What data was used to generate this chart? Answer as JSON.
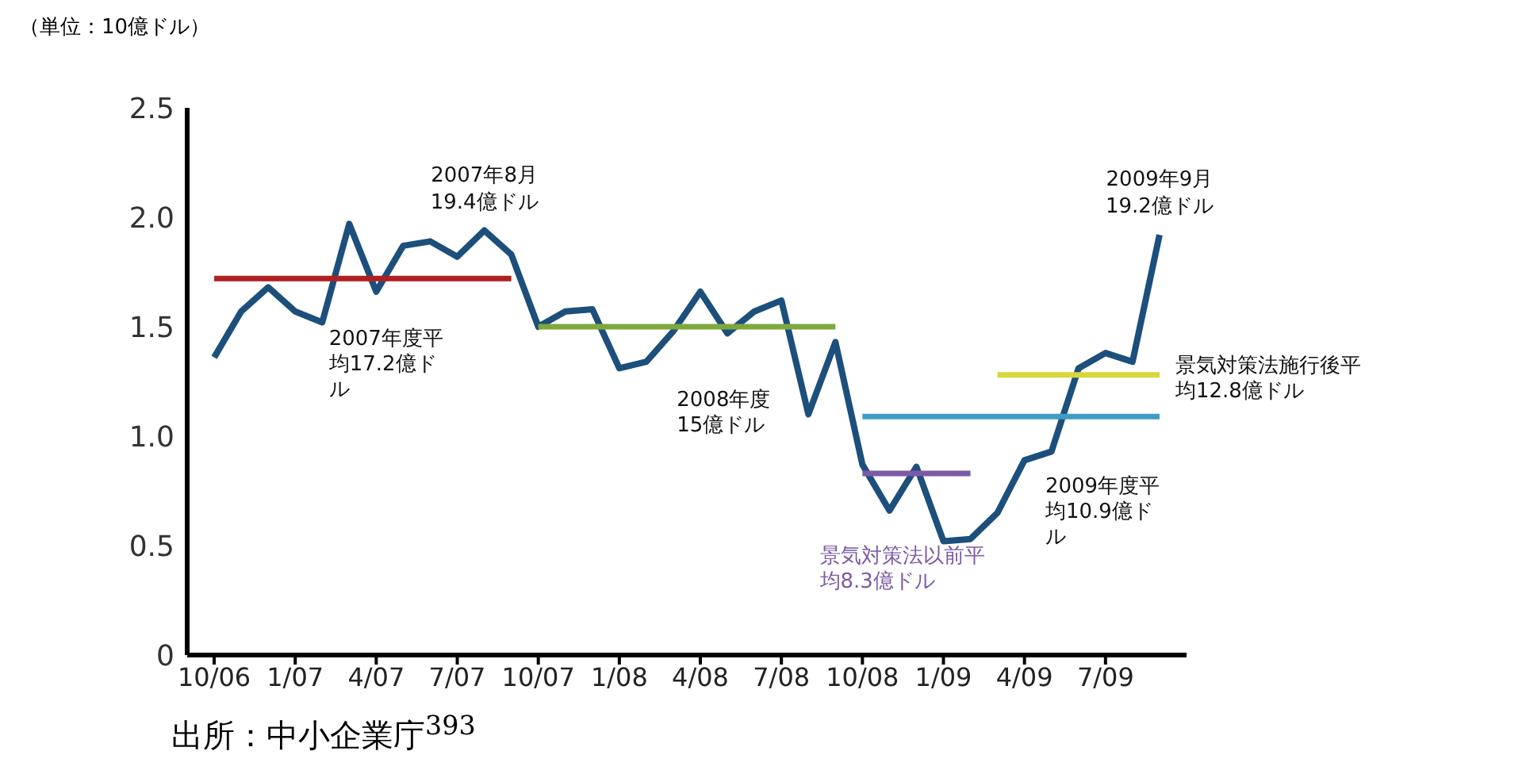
{
  "chart_data": {
    "type": "line",
    "ylabel": "（単位：10億ドル）",
    "x": [
      "2006-10",
      "2006-11",
      "2006-12",
      "2007-01",
      "2007-02",
      "2007-03",
      "2007-04",
      "2007-05",
      "2007-06",
      "2007-07",
      "2007-08",
      "2007-09",
      "2007-10",
      "2007-11",
      "2007-12",
      "2008-01",
      "2008-02",
      "2008-03",
      "2008-04",
      "2008-05",
      "2008-06",
      "2008-07",
      "2008-08",
      "2008-09",
      "2008-10",
      "2008-11",
      "2008-12",
      "2009-01",
      "2009-02",
      "2009-03",
      "2009-04",
      "2009-05",
      "2009-06",
      "2009-07",
      "2009-08",
      "2009-09"
    ],
    "series": [
      {
        "color": "#1c4f7c",
        "values": [
          1.36,
          1.57,
          1.68,
          1.57,
          1.52,
          1.97,
          1.66,
          1.87,
          1.89,
          1.82,
          1.94,
          1.83,
          1.5,
          1.57,
          1.58,
          1.31,
          1.34,
          1.48,
          1.66,
          1.47,
          1.57,
          1.62,
          1.1,
          1.43,
          0.87,
          0.66,
          0.86,
          0.52,
          0.53,
          0.65,
          0.89,
          0.93,
          1.31,
          1.38,
          1.34,
          1.92
        ]
      },
      {
        "name": "2007年度平均17.2億ドル",
        "color": "#b02020",
        "x": [
          "2006-10",
          "2007-09"
        ],
        "values": [
          1.72,
          1.72
        ]
      },
      {
        "name": "2008年度15億ドル",
        "color": "#7fa83c",
        "x": [
          "2007-10",
          "2008-09"
        ],
        "values": [
          1.5,
          1.5
        ]
      },
      {
        "name": "2009年度平均10.9億ドル",
        "color": "#3f9cc2",
        "x": [
          "2008-10",
          "2009-09"
        ],
        "values": [
          1.09,
          1.09
        ]
      },
      {
        "name": "景気対策法以前平均8.3億ドル",
        "color": "#7b5aa6",
        "x": [
          "2008-10",
          "2009-02"
        ],
        "values": [
          0.83,
          0.83
        ]
      },
      {
        "name": "景気対策法施行後平均12.8億ドル",
        "color": "#d9d63a",
        "x": [
          "2009-03",
          "2009-09"
        ],
        "values": [
          1.28,
          1.28
        ]
      }
    ],
    "xlim": [
      "2006-09",
      "2009-10"
    ],
    "xticks": [
      {
        "value": "2006-10",
        "label": "10/06"
      },
      {
        "value": "2007-01",
        "label": "1/07"
      },
      {
        "value": "2007-04",
        "label": "4/07"
      },
      {
        "value": "2007-07",
        "label": "7/07"
      },
      {
        "value": "2007-10",
        "label": "10/07"
      },
      {
        "value": "2008-01",
        "label": "1/08"
      },
      {
        "value": "2008-04",
        "label": "4/08"
      },
      {
        "value": "2008-07",
        "label": "7/08"
      },
      {
        "value": "2008-10",
        "label": "10/08"
      },
      {
        "value": "2009-01",
        "label": "1/09"
      },
      {
        "value": "2009-04",
        "label": "4/09"
      },
      {
        "value": "2009-07",
        "label": "7/09"
      }
    ],
    "ylim": [
      0,
      2.5
    ],
    "yticks": [
      0,
      {
        "value": 0.5,
        "label": "0.5"
      },
      {
        "value": 1,
        "label": "1.0"
      },
      {
        "value": 1.5,
        "label": "1.5"
      },
      {
        "value": 2,
        "label": "2.0"
      },
      2.5
    ],
    "grid": false,
    "legend": false,
    "marker": "none",
    "line_style": "solid",
    "annotations": [
      {
        "text": "2007年8月\n19.4億ドル",
        "x": "2007-08",
        "y": 1.94
      },
      {
        "text": "2009年9月\n19.2億ドル",
        "x": "2009-09",
        "y": 1.92
      },
      "出所：中小企業庁$^{393}$"
    ]
  }
}
